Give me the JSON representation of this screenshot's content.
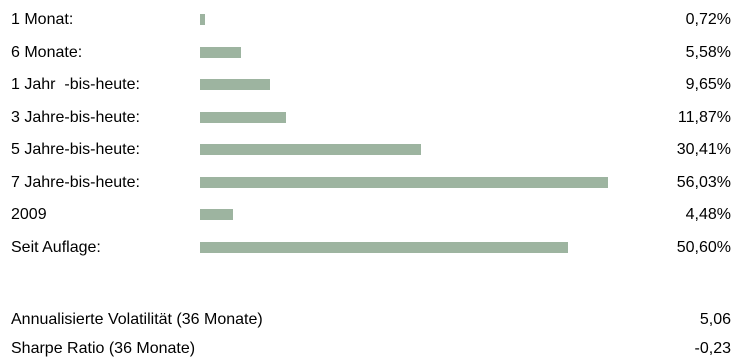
{
  "colors": {
    "bar": "#9db4a0"
  },
  "chart_data": {
    "type": "bar",
    "orientation": "horizontal",
    "categories": [
      "1 Monat:",
      "6 Monate:",
      "1 Jahr  -bis-heute:",
      "3 Jahre-bis-heute:",
      "5 Jahre-bis-heute:",
      "7 Jahre-bis-heute:",
      "2009",
      "Seit Auflage:"
    ],
    "values": [
      0.72,
      5.58,
      9.65,
      11.87,
      30.41,
      56.03,
      4.48,
      50.6
    ],
    "value_labels": [
      "0,72%",
      "5,58%",
      "9,65%",
      "11,87%",
      "30,41%",
      "56,03%",
      "4,48%",
      "50,60%"
    ],
    "xlim": [
      0,
      56.03
    ],
    "grid": false
  },
  "stats": [
    {
      "label": "Annualisierte Volatilität (36 Monate)",
      "value": "5,06"
    },
    {
      "label": "Sharpe Ratio (36 Monate)",
      "value": "-0,23"
    }
  ]
}
